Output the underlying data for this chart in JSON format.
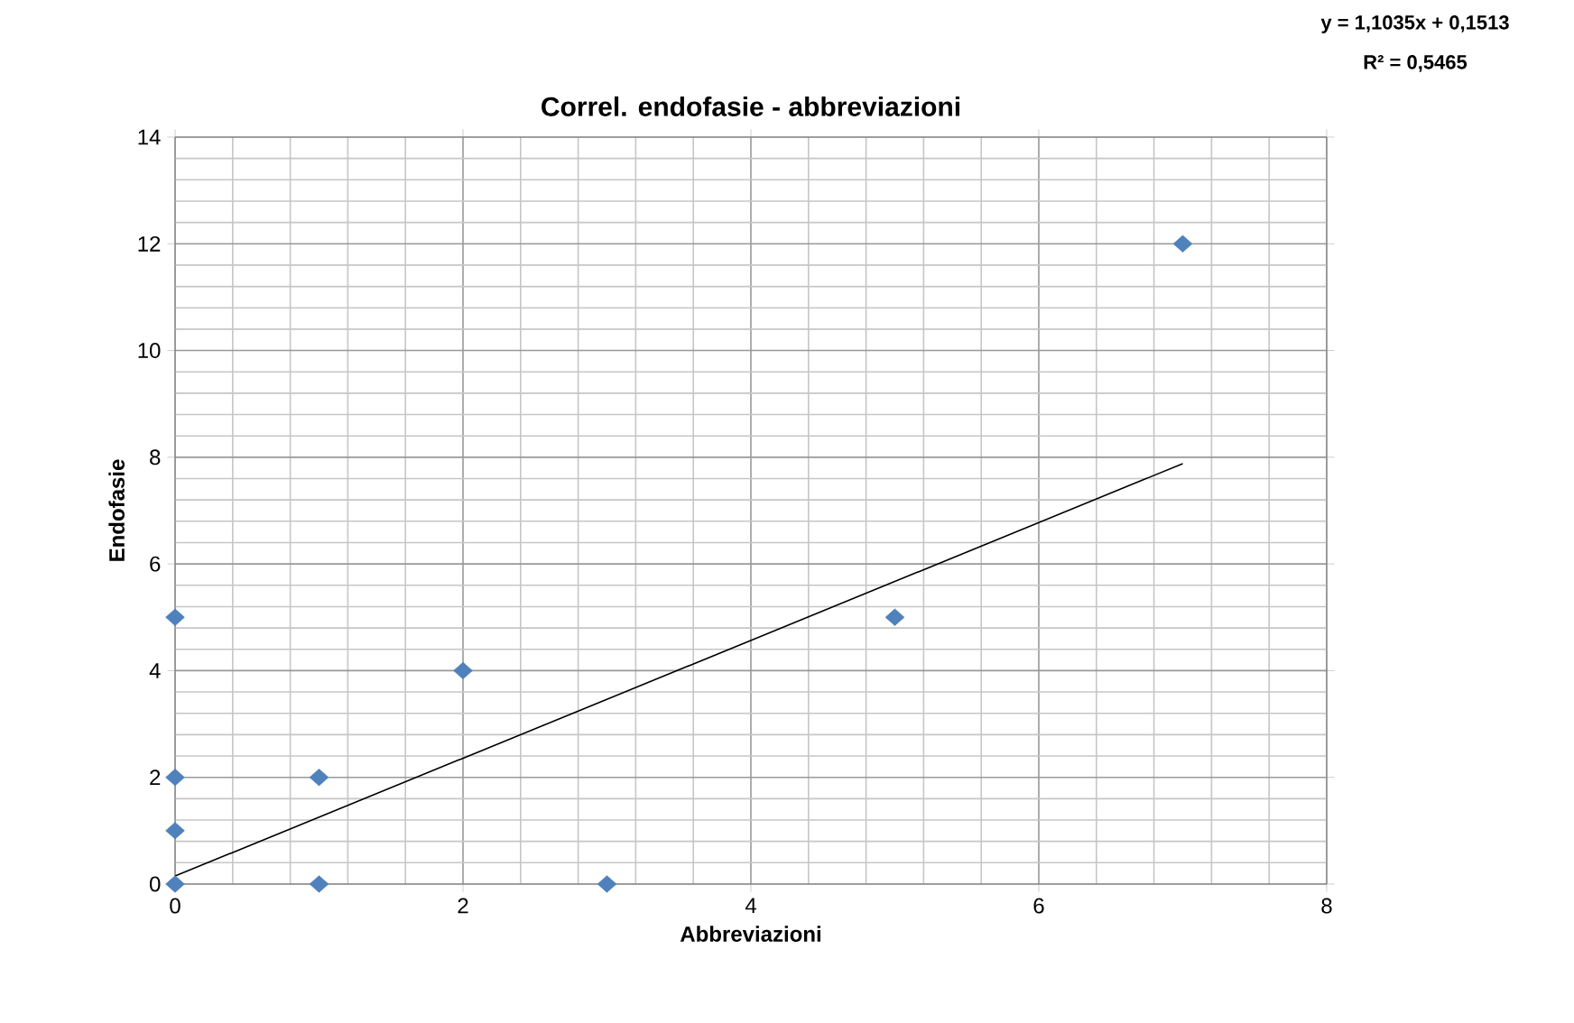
{
  "chart_data": {
    "type": "scatter",
    "title": "Correl. endofasie - abbreviazioni",
    "xlabel": "Abbreviazioni",
    "ylabel": "Endofasie",
    "annotations": [
      "y = 1,1035x + 0,1513",
      "R² = 0,5465"
    ],
    "series": [
      {
        "color": "#4f81bd",
        "marker": "diamond",
        "x": [
          0,
          0,
          0,
          0,
          1,
          1,
          2,
          3,
          5,
          7
        ],
        "values": [
          0,
          1,
          2,
          5,
          0,
          2,
          4,
          0,
          5,
          12
        ]
      },
      {
        "type": "line",
        "color": "#000000",
        "marker": "none",
        "x": [
          0,
          7
        ],
        "values": [
          0.15,
          7.88
        ]
      }
    ],
    "xlim": [
      0,
      8
    ],
    "ylim": [
      0,
      14
    ],
    "xticks": [
      0,
      2,
      4,
      6,
      8
    ],
    "yticks": [
      0,
      2,
      4,
      6,
      8,
      10,
      12,
      14
    ],
    "grid": true
  }
}
